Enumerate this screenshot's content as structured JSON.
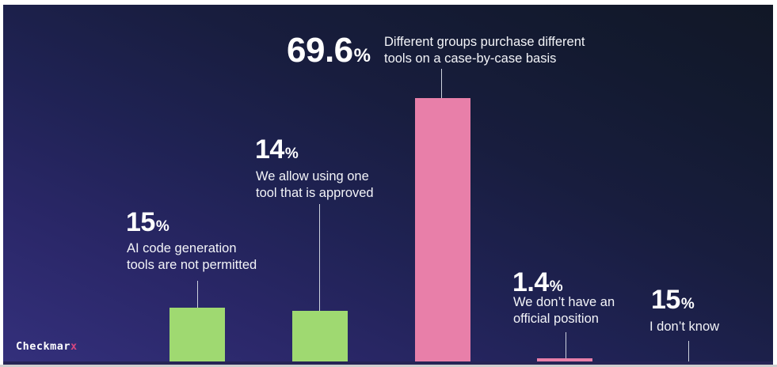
{
  "chart_data": {
    "type": "bar",
    "orientation": "vertical",
    "title": "",
    "unit": "%",
    "categories": [
      "AI code generation tools are not permitted",
      "We allow using one tool that is approved",
      "Different groups purchase different tools on a case-by-case basis",
      "We don’t have an official position",
      "I don’t know"
    ],
    "values": [
      15,
      14,
      69.6,
      1.4,
      15
    ],
    "bar_colors": [
      "#9fd971",
      "#9fd971",
      "#e87fa9",
      "#e87fa9",
      "#e87fa9"
    ],
    "data_labels": [
      "15%",
      "14%",
      "69.6%",
      "1.4%",
      "15%"
    ],
    "grid": false,
    "axes_visible": false
  },
  "groups": [
    {
      "value": "15",
      "unit": "%",
      "label": "AI code generation\ntools are not permitted"
    },
    {
      "value": "14",
      "unit": "%",
      "label": "We allow using one\ntool that is approved"
    },
    {
      "value": "69.6",
      "unit": "%",
      "label": "Different groups purchase different\ntools on a case-by-case basis"
    },
    {
      "value": "1.4",
      "unit": "%",
      "label": "We don’t have an\nofficial position"
    },
    {
      "value": "15",
      "unit": "%",
      "label": "I don’t know"
    }
  ],
  "colors": {
    "green_bar": "#9fd971",
    "pink_bar": "#e87fa9",
    "background_bottom_left": "#34307c",
    "background_top_right": "#111726",
    "leader_line": "#ccd1dd",
    "text": "#ffffff",
    "logo_accent": "#d6467f"
  },
  "logo": {
    "text_main": "Checkmar",
    "text_x": "x"
  }
}
